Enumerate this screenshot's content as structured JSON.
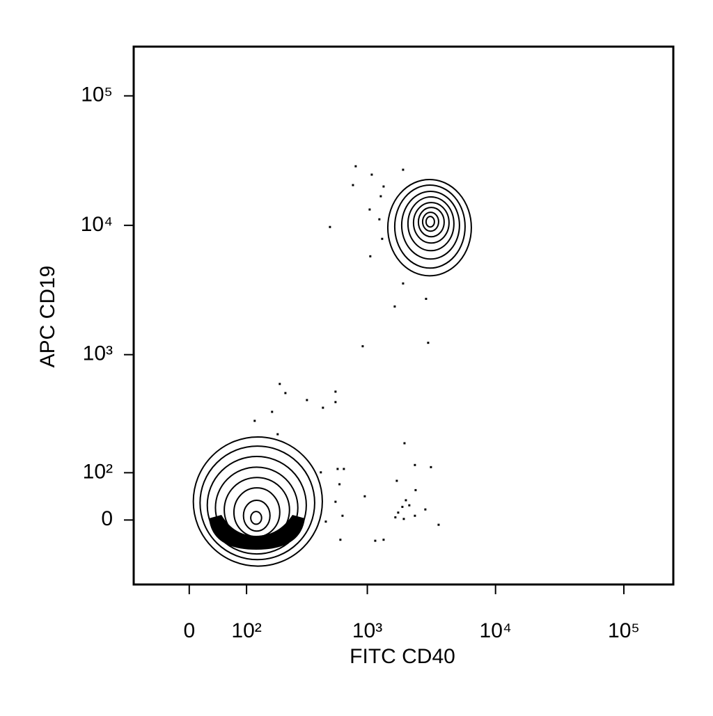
{
  "chart_data": {
    "type": "contour",
    "xlabel": "FITC CD40",
    "ylabel": "APC CD19",
    "xscale": "biexponential",
    "yscale": "biexponential",
    "color": "#000000",
    "xlim": [
      -96,
      243000
    ],
    "ylim": [
      -150,
      240000
    ],
    "xticks": [
      0,
      {
        "value": 100,
        "label": "10²"
      },
      {
        "value": 1000,
        "label": "10³"
      },
      {
        "value": 10000,
        "label": "10⁴"
      },
      {
        "value": 100000,
        "label": "10⁵"
      }
    ],
    "yticks": [
      0,
      {
        "value": 100,
        "label": "10²"
      },
      {
        "value": 1000,
        "label": "10³"
      },
      {
        "value": 10000,
        "label": "10⁴"
      },
      {
        "value": 100000,
        "label": "10⁵"
      }
    ],
    "contours": [
      {
        "levels": [
          {
            "x": [
              6,
              443
            ],
            "y": [
              -97,
              220
            ]
          },
          {
            "x": [
              16,
              385
            ],
            "y": [
              -81,
              183
            ]
          },
          {
            "x": [
              27,
              330
            ],
            "y": [
              -68,
              147
            ]
          },
          {
            "x": [
              40,
              282
            ],
            "y": [
              -56,
              115
            ]
          },
          {
            "x": [
              55,
              241
            ],
            "y": [
              -43,
              88
            ]
          },
          {
            "x": [
              73,
              200
            ],
            "y": [
              -32,
              64
            ]
          },
          {
            "x": [
              93,
              165
            ],
            "y": [
              -21,
              38
            ]
          },
          {
            "x": [
              110,
              139
            ],
            "y": [
              -8,
              16
            ]
          }
        ]
      },
      {
        "levels": [
          {
            "x": [
              1445,
              6478
            ],
            "y": [
              4076,
              22589
            ]
          },
          {
            "x": [
              1637,
              5789
            ],
            "y": [
              4675,
              20450
            ]
          },
          {
            "x": [
              1855,
              5235
            ],
            "y": [
              5490,
              18289
            ]
          },
          {
            "x": [
              2076,
              4737
            ],
            "y": [
              6370,
              16563
            ]
          },
          {
            "x": [
              2294,
              4340
            ],
            "y": [
              7303,
              14993
            ]
          },
          {
            "x": [
              2504,
              3977
            ],
            "y": [
              8164,
              13748
            ]
          },
          {
            "x": [
              2700,
              3600
            ],
            "y": [
              9015,
              12603
            ]
          },
          {
            "x": [
              2874,
              3339
            ],
            "y": [
              9709,
              11697
            ]
          }
        ]
      }
    ],
    "x": [
      811,
      1083,
      772,
      1340,
      1902,
      1274,
      1043,
      509,
      1242,
      1055,
      1306,
      1902,
      1637,
      2874,
      2984,
      920,
      200,
      223,
      172,
      334,
      563,
      563,
      448,
      120,
      192,
      1951,
      2352,
      3137,
      585,
      655,
      431,
      605,
      955,
      563,
      1699,
      2000,
      1878,
      2382,
      2127,
      2837,
      1742,
      1656,
      1927,
      2352,
      3600,
      639,
      472,
      1153,
      1340,
      615
    ],
    "values": [
      28580,
      24634,
      20450,
      19949,
      26871,
      16769,
      13250,
      9709,
      11130,
      5766,
      7865,
      3556,
      2360,
      2705,
      1236,
      1162,
      591,
      501,
      355,
      441,
      514,
      425,
      383,
      300,
      232,
      194,
      121,
      115,
      110,
      110,
      101,
      72,
      46,
      35,
      80,
      38,
      25,
      59,
      28,
      20,
      14,
      5,
      2,
      8,
      -9,
      8,
      -3,
      -40,
      -38,
      -38
    ]
  }
}
